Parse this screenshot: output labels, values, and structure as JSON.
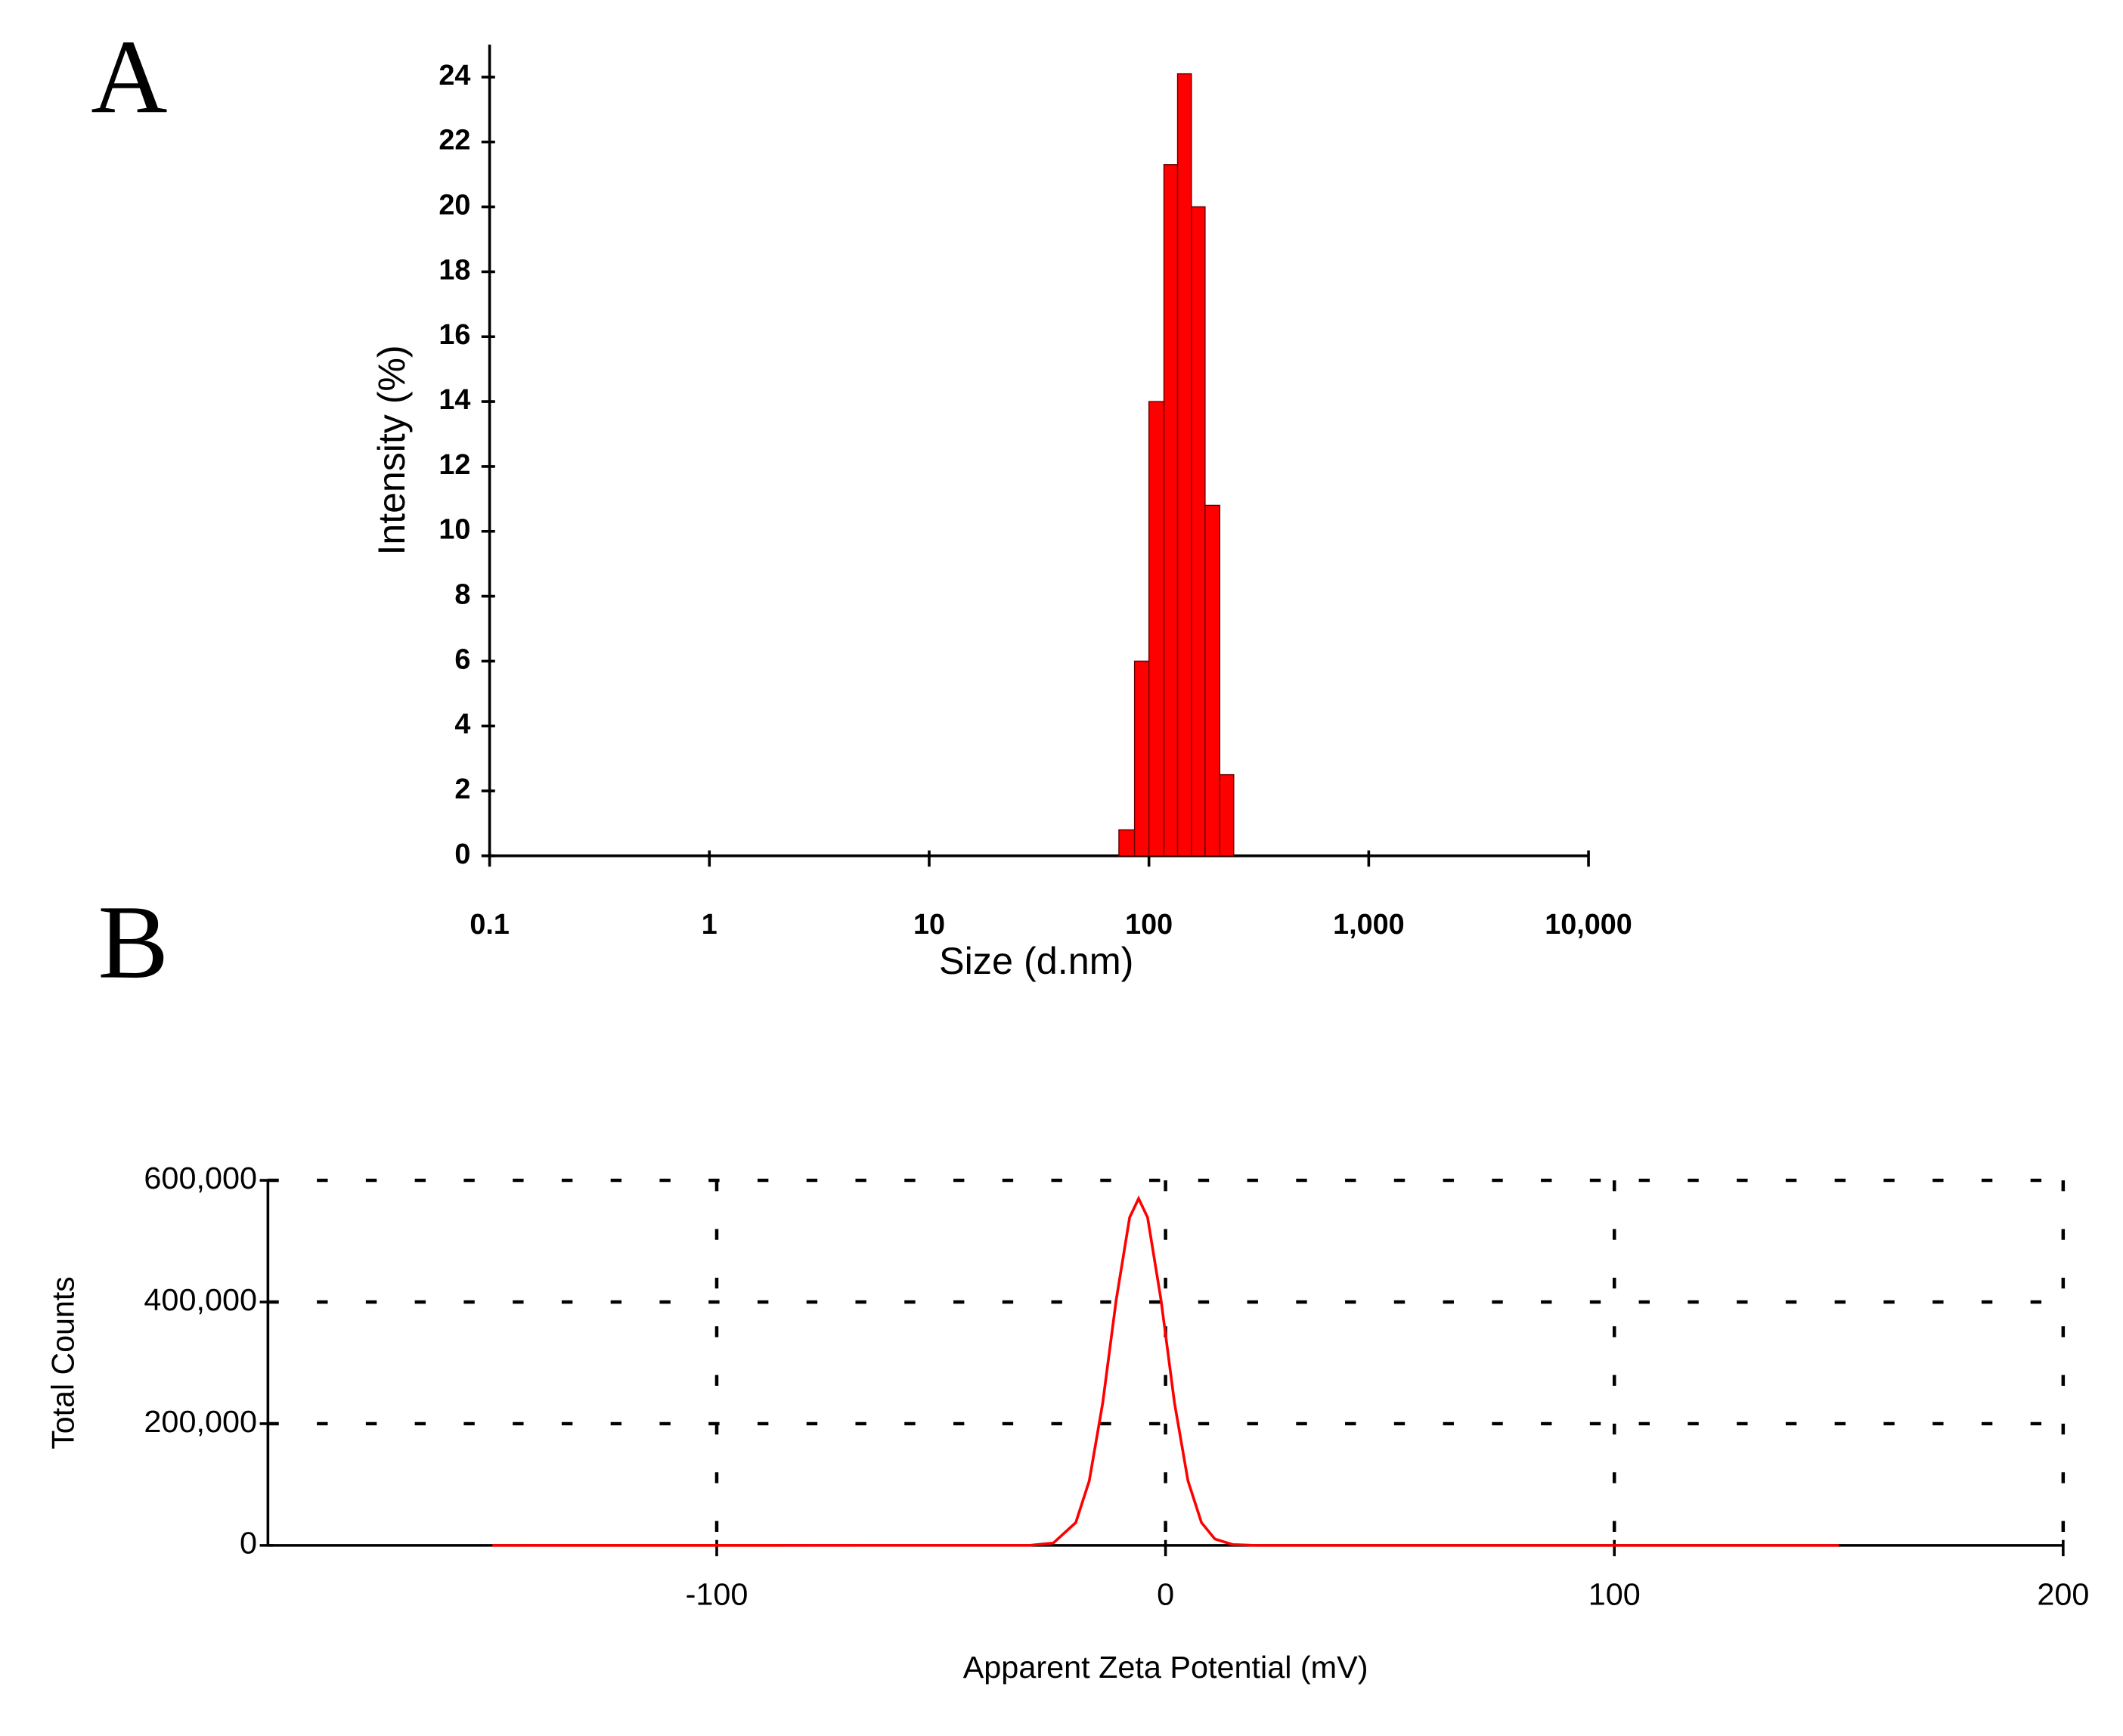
{
  "chart_data": [
    {
      "type": "histogram",
      "panel_label": "A",
      "xlabel": "Size (d.nm)",
      "ylabel": "Intensity (%)",
      "xscale": "log",
      "color": "#ff0000",
      "bins": [
        73,
        86,
        100,
        117,
        135,
        156,
        180,
        210,
        243
      ],
      "values": [
        0.8,
        6,
        14,
        21.3,
        24.1,
        20,
        10.8,
        2.5
      ],
      "xlim": [
        0.1,
        10000
      ],
      "xticks": [
        0.1,
        1,
        10,
        100,
        {
          "value": 1000,
          "label": "1,000"
        },
        {
          "value": 10000,
          "label": "10,000"
        }
      ],
      "ylim": [
        0,
        25
      ],
      "yticks": [
        0,
        2,
        4,
        6,
        8,
        10,
        12,
        14,
        16,
        18,
        20,
        22,
        24
      ],
      "grid": false
    },
    {
      "type": "line",
      "panel_label": "B",
      "xlabel": "Apparent Zeta Potential (mV)",
      "ylabel": "Total Counts",
      "xscale": "linear",
      "color": "#ff0000",
      "x": [
        -150,
        -30,
        -25,
        -20,
        -17,
        -14,
        -11,
        -8,
        -6,
        -4,
        -1,
        2,
        5,
        8,
        11,
        15,
        20,
        150
      ],
      "values": [
        0,
        200,
        3800,
        37500,
        106000,
        234000,
        403000,
        539000,
        570000,
        539000,
        403000,
        234000,
        106000,
        37500,
        10400,
        1300,
        0,
        0
      ],
      "xlim": [
        -200,
        200
      ],
      "xticks": [
        -100,
        0,
        100,
        200
      ],
      "ylim": [
        0,
        600000
      ],
      "yticks": [
        0,
        {
          "value": 200000,
          "label": "200,000"
        },
        {
          "value": 400000,
          "label": "400,000"
        },
        {
          "value": 600000,
          "label": "600,000"
        }
      ],
      "grid": true
    }
  ]
}
